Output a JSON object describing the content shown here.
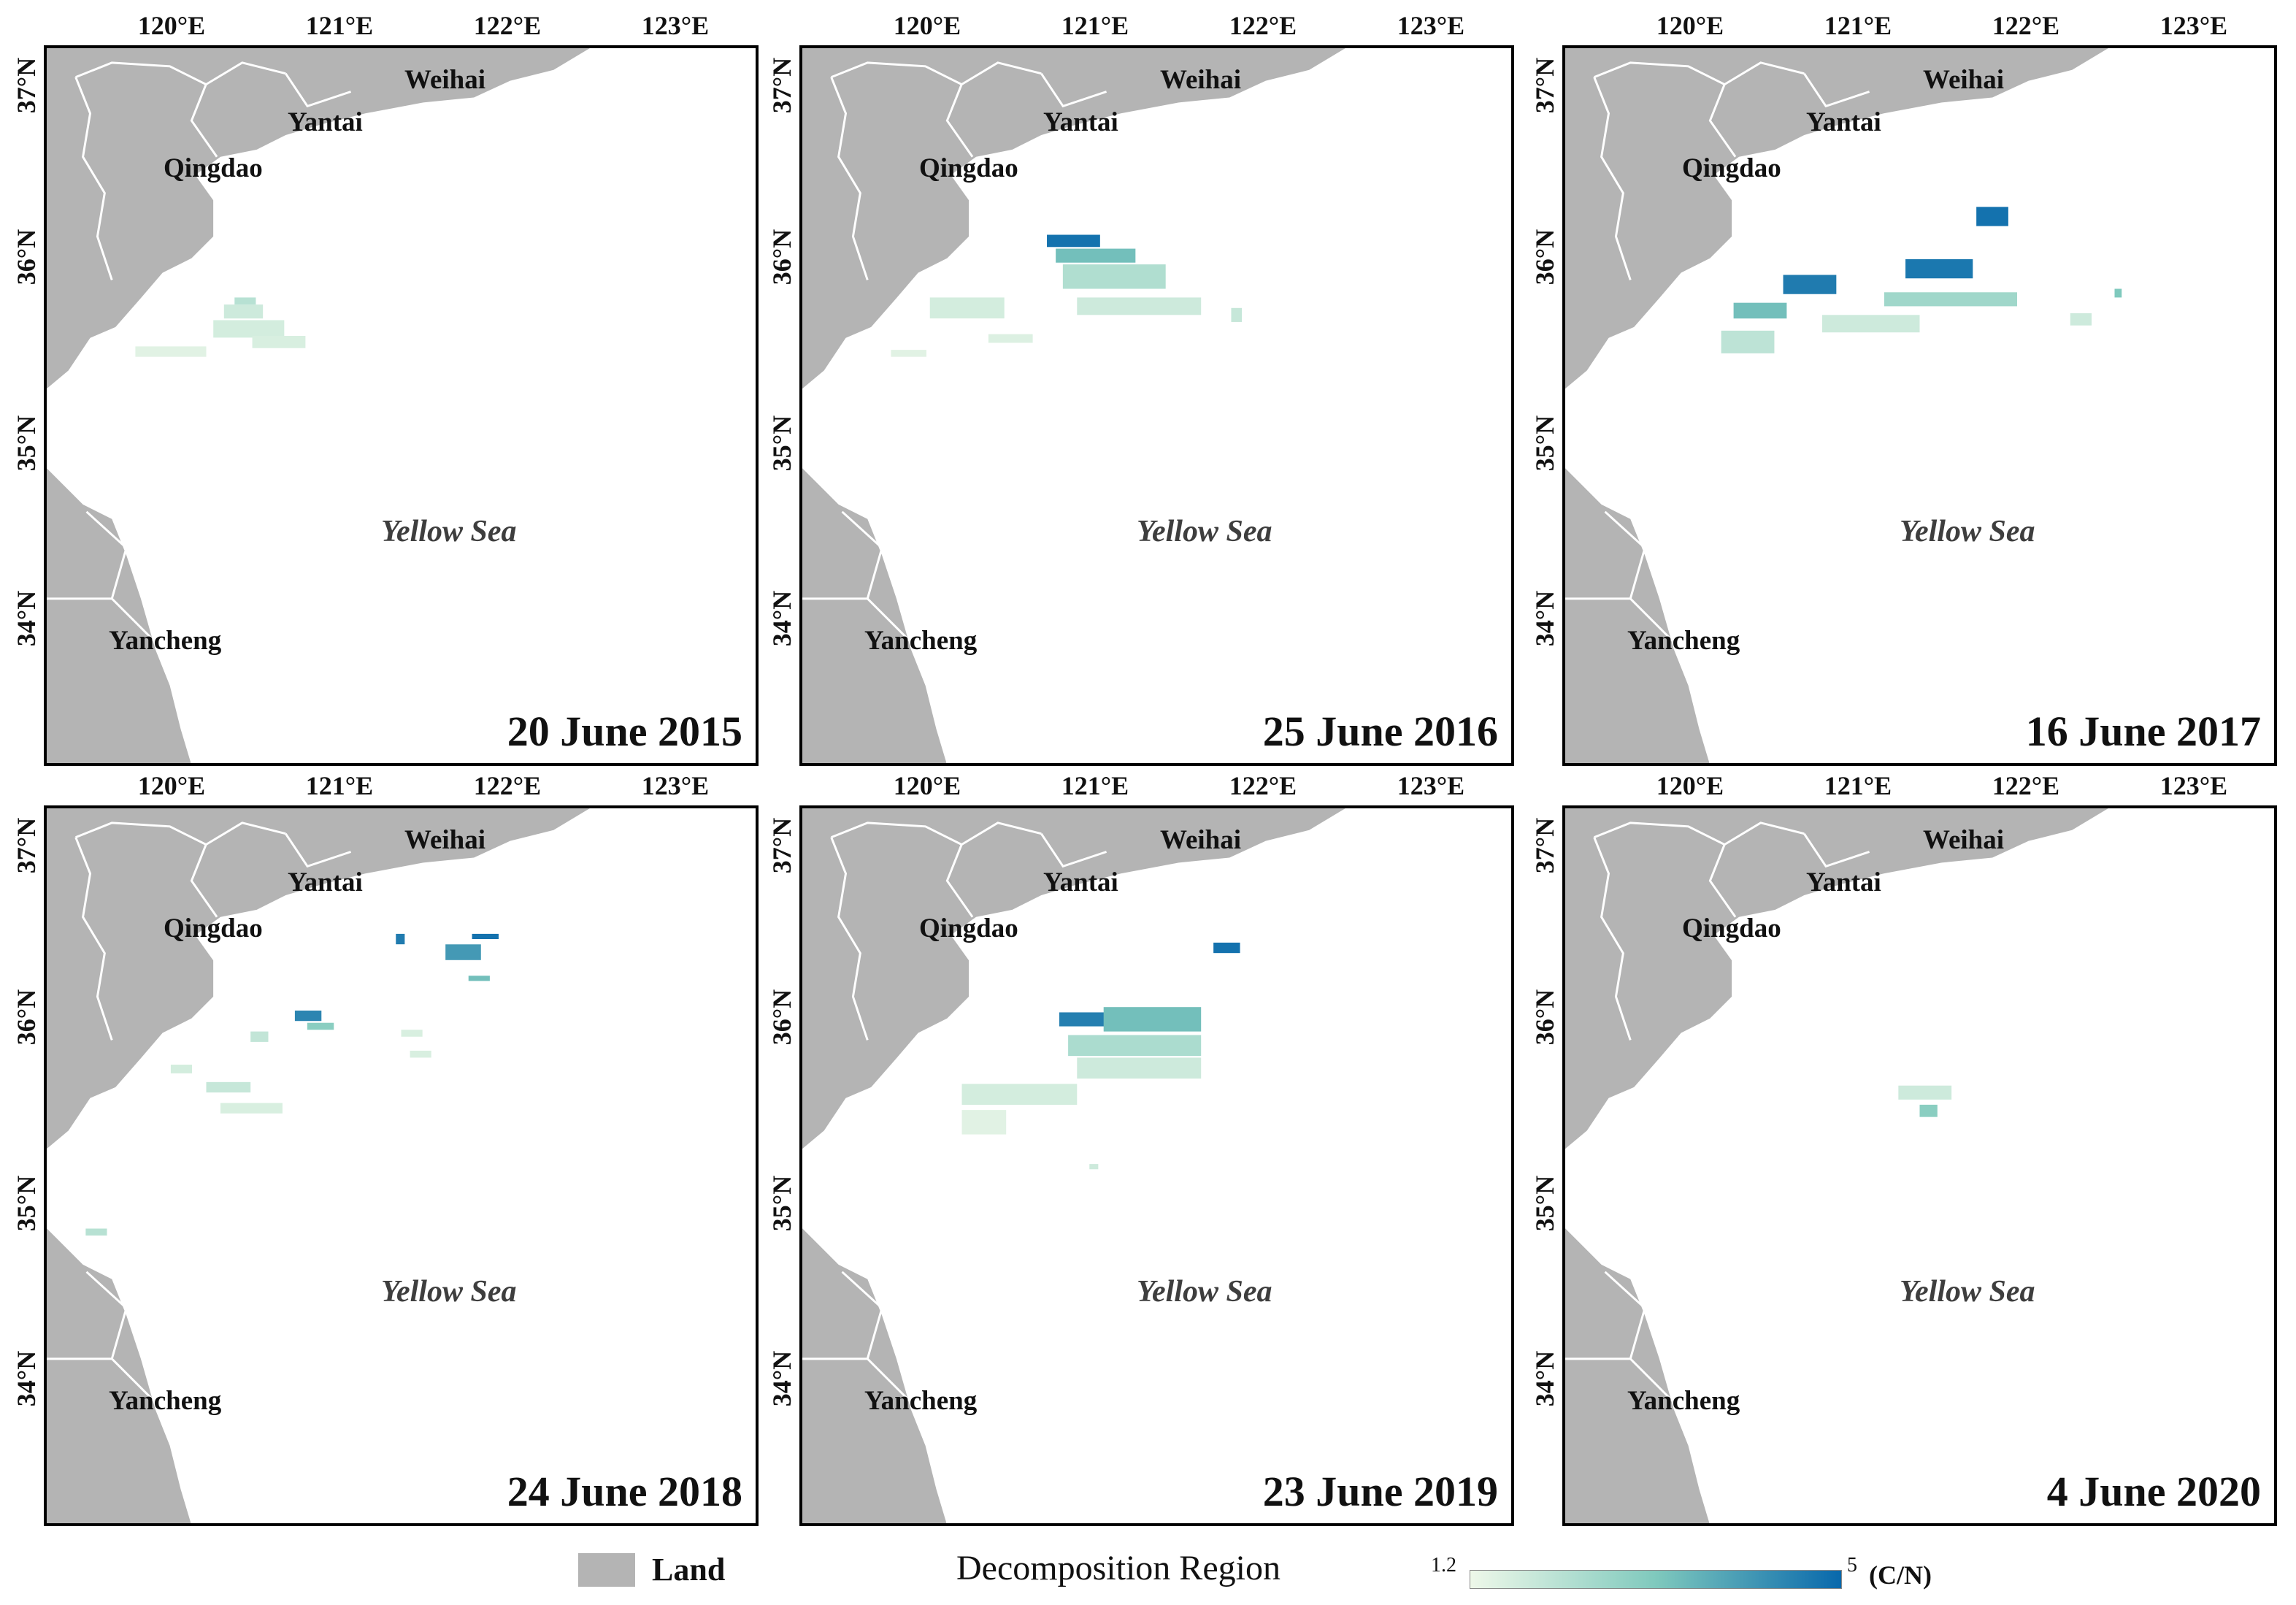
{
  "lon_labels": [
    "120°E",
    "121°E",
    "122°E",
    "123°E"
  ],
  "lat_labels": [
    "37°N",
    "36°N",
    "35°N",
    "34°N"
  ],
  "sea_label": "Yellow Sea",
  "city_labels": {
    "weihai": "Weihai",
    "yantai": "Yantai",
    "qingdao": "Qingdao",
    "yancheng": "Yancheng"
  },
  "panels": [
    {
      "date": "20 June 2015"
    },
    {
      "date": "25 June 2016"
    },
    {
      "date": "16 June 2017"
    },
    {
      "date": "24 June 2018"
    },
    {
      "date": "23 June 2019"
    },
    {
      "date": "4 June 2020"
    }
  ],
  "legend": {
    "land_label": "Land",
    "decomposition_label": "Decomposition Region",
    "scale_min": "1.2",
    "scale_max": "5",
    "scale_unit": "(C/N)"
  },
  "colors": {
    "land": "#b4b4b4",
    "sea": "#ffffff",
    "scale_low": "#eef8e9",
    "scale_mid": "#7fc9bd",
    "scale_high": "#0868ac"
  },
  "map_extent": {
    "lon": [
      119.5,
      123.5
    ],
    "lat": [
      33.25,
      37.35
    ]
  },
  "patches": [
    [
      {
        "lon": 120.56,
        "lat": 35.88,
        "w": 0.12,
        "h": 0.04,
        "v": 0.25
      },
      {
        "lon": 120.5,
        "lat": 35.8,
        "w": 0.22,
        "h": 0.08,
        "v": 0.15
      },
      {
        "lon": 120.44,
        "lat": 35.69,
        "w": 0.4,
        "h": 0.1,
        "v": 0.12
      },
      {
        "lon": 120.66,
        "lat": 35.63,
        "w": 0.3,
        "h": 0.07,
        "v": 0.1
      },
      {
        "lon": 120.0,
        "lat": 35.58,
        "w": 0.4,
        "h": 0.06,
        "v": 0.06
      }
    ],
    [
      {
        "lon": 120.88,
        "lat": 36.21,
        "w": 0.3,
        "h": 0.07,
        "v": 0.95
      },
      {
        "lon": 120.93,
        "lat": 36.12,
        "w": 0.45,
        "h": 0.08,
        "v": 0.55
      },
      {
        "lon": 120.97,
        "lat": 35.97,
        "w": 0.58,
        "h": 0.14,
        "v": 0.28
      },
      {
        "lon": 121.05,
        "lat": 35.82,
        "w": 0.7,
        "h": 0.1,
        "v": 0.15
      },
      {
        "lon": 120.22,
        "lat": 35.8,
        "w": 0.42,
        "h": 0.12,
        "v": 0.12
      },
      {
        "lon": 120.55,
        "lat": 35.66,
        "w": 0.25,
        "h": 0.05,
        "v": 0.08
      },
      {
        "lon": 121.92,
        "lat": 35.78,
        "w": 0.06,
        "h": 0.08,
        "v": 0.18
      },
      {
        "lon": 120.0,
        "lat": 35.58,
        "w": 0.2,
        "h": 0.04,
        "v": 0.06
      }
    ],
    [
      {
        "lon": 121.82,
        "lat": 36.33,
        "w": 0.18,
        "h": 0.11,
        "v": 0.95
      },
      {
        "lon": 121.42,
        "lat": 36.03,
        "w": 0.38,
        "h": 0.11,
        "v": 0.92
      },
      {
        "lon": 120.73,
        "lat": 35.94,
        "w": 0.3,
        "h": 0.11,
        "v": 0.9
      },
      {
        "lon": 120.45,
        "lat": 35.8,
        "w": 0.3,
        "h": 0.09,
        "v": 0.55
      },
      {
        "lon": 120.38,
        "lat": 35.6,
        "w": 0.3,
        "h": 0.13,
        "v": 0.22
      },
      {
        "lon": 121.3,
        "lat": 35.87,
        "w": 0.75,
        "h": 0.08,
        "v": 0.35
      },
      {
        "lon": 120.95,
        "lat": 35.72,
        "w": 0.55,
        "h": 0.1,
        "v": 0.15
      },
      {
        "lon": 122.35,
        "lat": 35.76,
        "w": 0.12,
        "h": 0.07,
        "v": 0.15
      },
      {
        "lon": 122.6,
        "lat": 35.92,
        "w": 0.04,
        "h": 0.05,
        "v": 0.5
      }
    ],
    [
      {
        "lon": 121.75,
        "lat": 36.48,
        "w": 0.2,
        "h": 0.09,
        "v": 0.75
      },
      {
        "lon": 121.9,
        "lat": 36.6,
        "w": 0.15,
        "h": 0.03,
        "v": 0.95
      },
      {
        "lon": 121.47,
        "lat": 36.57,
        "w": 0.05,
        "h": 0.06,
        "v": 0.9
      },
      {
        "lon": 121.88,
        "lat": 36.36,
        "w": 0.12,
        "h": 0.03,
        "v": 0.55
      },
      {
        "lon": 120.9,
        "lat": 36.13,
        "w": 0.15,
        "h": 0.06,
        "v": 0.85
      },
      {
        "lon": 120.97,
        "lat": 36.08,
        "w": 0.15,
        "h": 0.04,
        "v": 0.45
      },
      {
        "lon": 120.65,
        "lat": 36.01,
        "w": 0.1,
        "h": 0.06,
        "v": 0.2
      },
      {
        "lon": 121.5,
        "lat": 36.04,
        "w": 0.12,
        "h": 0.04,
        "v": 0.1
      },
      {
        "lon": 121.55,
        "lat": 35.92,
        "w": 0.12,
        "h": 0.04,
        "v": 0.1
      },
      {
        "lon": 120.2,
        "lat": 35.83,
        "w": 0.12,
        "h": 0.05,
        "v": 0.12
      },
      {
        "lon": 120.4,
        "lat": 35.72,
        "w": 0.25,
        "h": 0.06,
        "v": 0.18
      },
      {
        "lon": 120.48,
        "lat": 35.6,
        "w": 0.35,
        "h": 0.06,
        "v": 0.1
      },
      {
        "lon": 119.72,
        "lat": 34.9,
        "w": 0.12,
        "h": 0.04,
        "v": 0.25
      }
    ],
    [
      {
        "lon": 121.82,
        "lat": 36.52,
        "w": 0.15,
        "h": 0.06,
        "v": 0.95
      },
      {
        "lon": 120.95,
        "lat": 36.1,
        "w": 0.35,
        "h": 0.08,
        "v": 0.88
      },
      {
        "lon": 121.2,
        "lat": 36.07,
        "w": 0.55,
        "h": 0.14,
        "v": 0.55
      },
      {
        "lon": 121.0,
        "lat": 35.93,
        "w": 0.75,
        "h": 0.12,
        "v": 0.3
      },
      {
        "lon": 121.05,
        "lat": 35.8,
        "w": 0.7,
        "h": 0.12,
        "v": 0.15
      },
      {
        "lon": 120.4,
        "lat": 35.65,
        "w": 0.65,
        "h": 0.12,
        "v": 0.12
      },
      {
        "lon": 120.4,
        "lat": 35.48,
        "w": 0.25,
        "h": 0.14,
        "v": 0.06
      },
      {
        "lon": 121.12,
        "lat": 35.28,
        "w": 0.05,
        "h": 0.03,
        "v": 0.15
      }
    ],
    [
      {
        "lon": 121.38,
        "lat": 35.68,
        "w": 0.3,
        "h": 0.08,
        "v": 0.15
      },
      {
        "lon": 121.5,
        "lat": 35.58,
        "w": 0.1,
        "h": 0.07,
        "v": 0.45
      }
    ]
  ]
}
